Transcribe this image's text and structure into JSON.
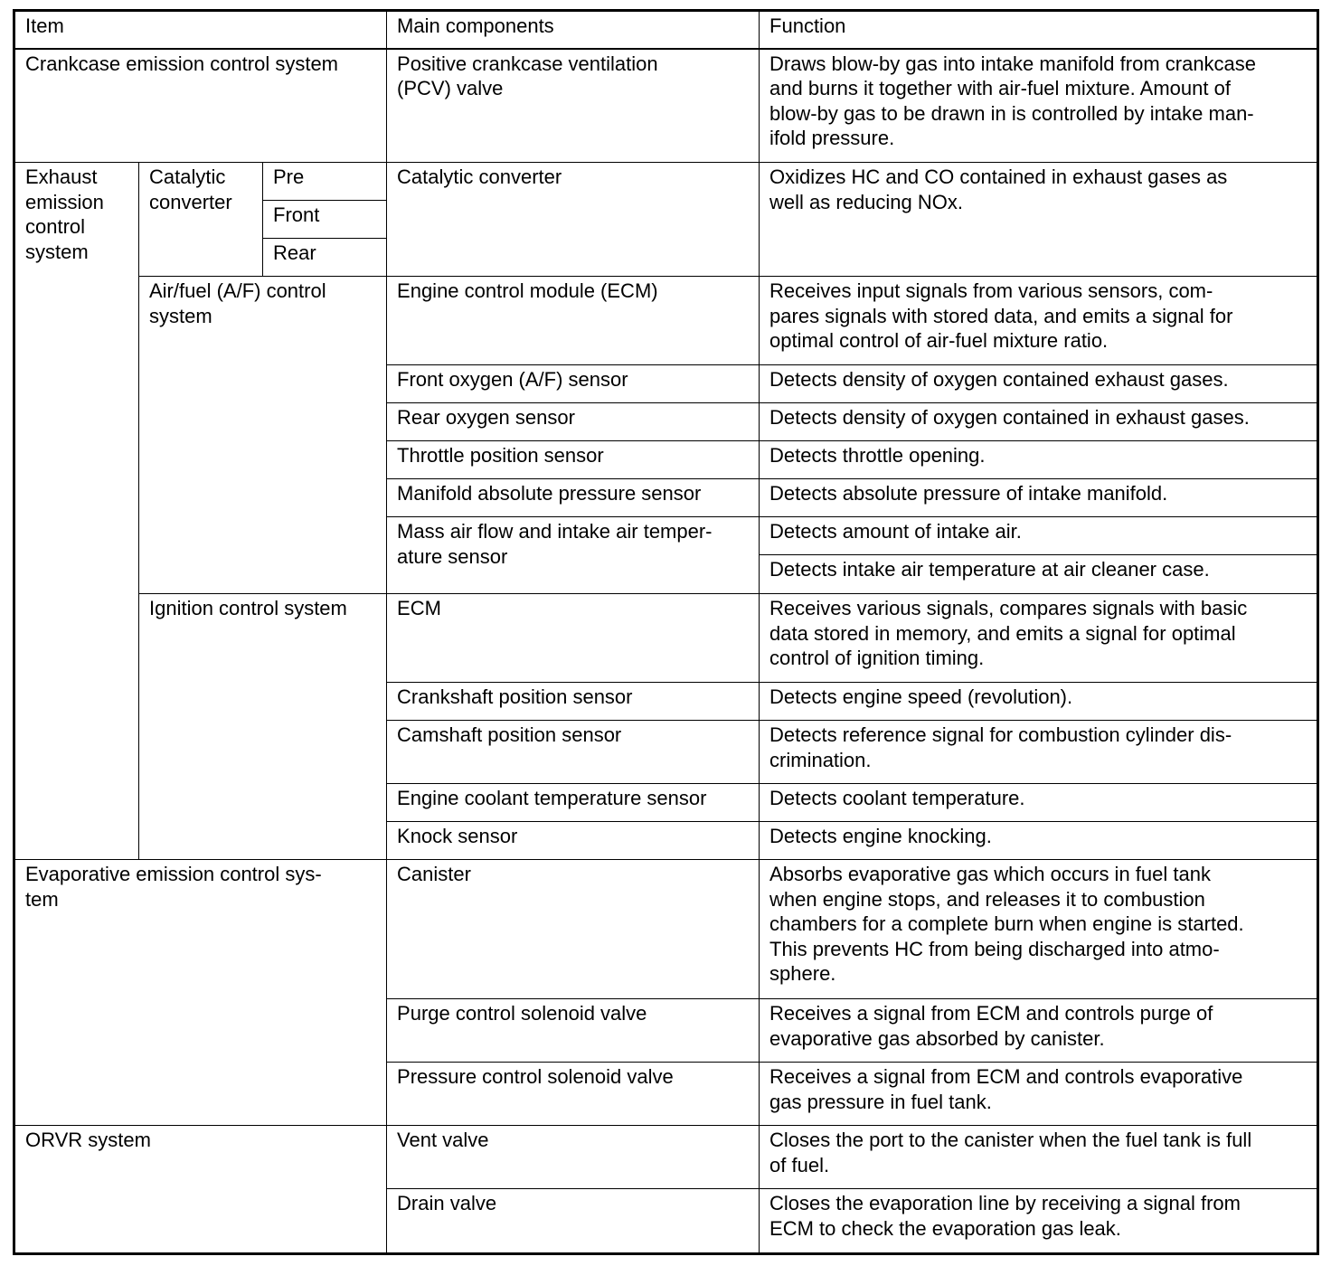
{
  "header": {
    "item": "Item",
    "components": "Main components",
    "function": "Function"
  },
  "crankcase": {
    "item": "Crankcase emission control system",
    "component": "Positive crankcase ventilation\n(PCV) valve",
    "function": "Draws blow-by gas into intake manifold from crankcase\nand burns it together with air-fuel mixture. Amount of\nblow-by gas to be drawn in is controlled by intake man-\nifold pressure."
  },
  "exhaust": {
    "item": "Exhaust\nemission\ncontrol\nsystem",
    "catalytic": {
      "item": "Catalytic\nconverter",
      "positions": [
        "Pre",
        "Front",
        "Rear"
      ],
      "component": "Catalytic converter",
      "function": "Oxidizes HC and CO contained in exhaust gases as\nwell as reducing NOx."
    },
    "af": {
      "item": "Air/fuel (A/F) control\nsystem",
      "rows": [
        {
          "component": "Engine control module (ECM)",
          "function": "Receives input signals from various sensors, com-\npares signals with stored data, and emits a signal for\noptimal control of air-fuel mixture ratio."
        },
        {
          "component": "Front oxygen (A/F) sensor",
          "function": "Detects density of oxygen contained exhaust gases."
        },
        {
          "component": "Rear oxygen sensor",
          "function": "Detects density of oxygen contained in exhaust gases."
        },
        {
          "component": "Throttle position sensor",
          "function": "Detects throttle opening."
        },
        {
          "component": "Manifold absolute pressure sensor",
          "function": "Detects absolute pressure of intake manifold."
        }
      ],
      "maf": {
        "component": "Mass air flow and intake air temper-\nature sensor",
        "functions": [
          "Detects amount of intake air.",
          "Detects intake air temperature at air cleaner case."
        ]
      }
    },
    "ignition": {
      "item": "Ignition control system",
      "rows": [
        {
          "component": "ECM",
          "function": "Receives various signals, compares signals with basic\ndata stored in memory, and emits a signal for optimal\ncontrol of ignition timing."
        },
        {
          "component": "Crankshaft position sensor",
          "function": "Detects engine speed (revolution)."
        },
        {
          "component": "Camshaft position sensor",
          "function": "Detects reference signal for combustion cylinder dis-\ncrimination."
        },
        {
          "component": "Engine coolant temperature sensor",
          "function": "Detects coolant temperature."
        },
        {
          "component": "Knock sensor",
          "function": "Detects engine knocking."
        }
      ]
    }
  },
  "evap": {
    "item": "Evaporative emission control sys-\ntem",
    "rows": [
      {
        "component": "Canister",
        "function": "Absorbs evaporative gas which occurs in fuel tank\nwhen engine stops, and releases it to combustion\nchambers for a complete burn when engine is started.\nThis prevents HC from being discharged into atmo-\nsphere."
      },
      {
        "component": "Purge control solenoid valve",
        "function": "Receives a signal from ECM and controls purge of\nevaporative gas absorbed by canister."
      },
      {
        "component": "Pressure control solenoid valve",
        "function": "Receives a signal from ECM and controls evaporative\ngas pressure in fuel tank."
      }
    ]
  },
  "orvr": {
    "item": "ORVR system",
    "rows": [
      {
        "component": "Vent valve",
        "function": "Closes the port to the canister when the fuel tank is full\nof fuel."
      },
      {
        "component": "Drain valve",
        "function": "Closes the evaporation line by receiving a signal from\nECM to check the evaporation gas leak."
      }
    ]
  }
}
